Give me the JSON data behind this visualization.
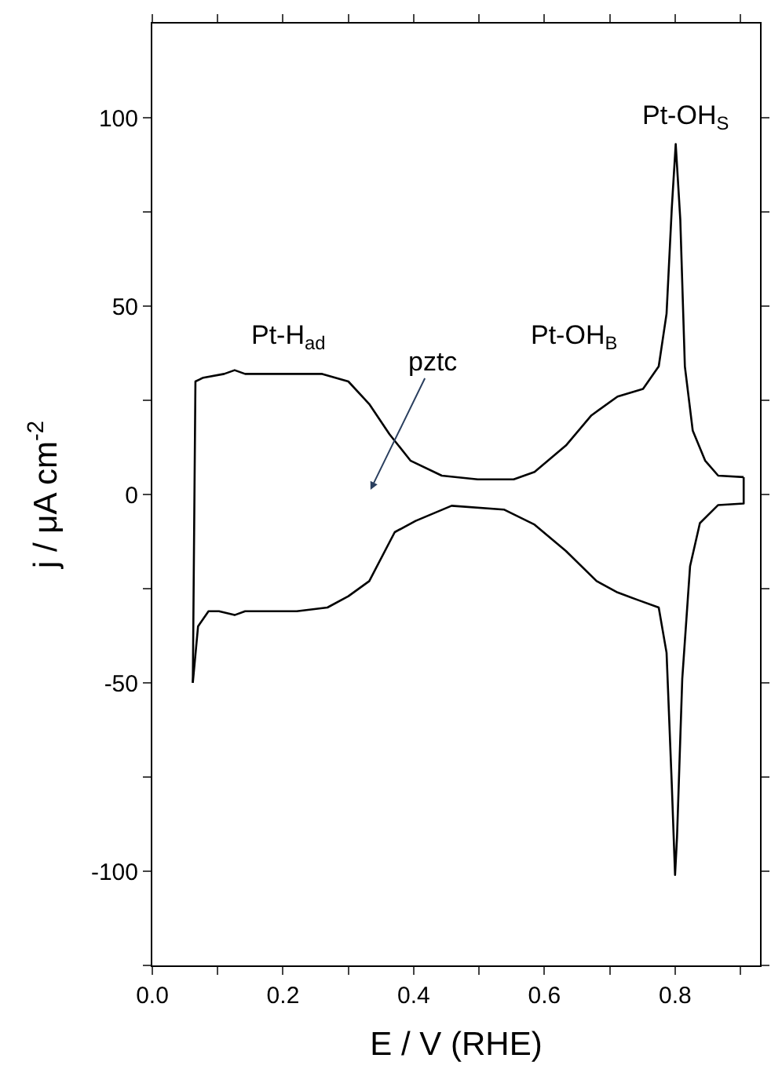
{
  "chart_data": {
    "type": "line",
    "xlabel": "E / V (RHE)",
    "ylabel": "j / μA cm$^{-2}$",
    "xlim": [
      0,
      0.93
    ],
    "ylim": [
      -125,
      125
    ],
    "xticks": [
      {
        "value": 0,
        "label": "0.0"
      },
      {
        "value": 0.1,
        "label": null
      },
      {
        "value": 0.2,
        "label": "0.2"
      },
      {
        "value": 0.3,
        "label": null
      },
      {
        "value": 0.4,
        "label": "0.4"
      },
      {
        "value": 0.5,
        "label": null
      },
      {
        "value": 0.6,
        "label": "0.6"
      },
      {
        "value": 0.7,
        "label": null
      },
      {
        "value": 0.8,
        "label": "0.8"
      },
      {
        "value": 0.9,
        "label": null
      }
    ],
    "yticks": [
      {
        "value": -125,
        "label": null
      },
      -100,
      {
        "value": -75,
        "label": null
      },
      -50,
      {
        "value": -25,
        "label": null
      },
      0,
      {
        "value": 25,
        "label": null
      },
      50,
      {
        "value": 75,
        "label": null
      },
      100
    ],
    "series": [
      {
        "color": "#000000",
        "x": [
          0.062,
          0.066,
          0.078,
          0.11,
          0.126,
          0.142,
          0.189,
          0.26,
          0.3,
          0.332,
          0.363,
          0.395,
          0.443,
          0.498,
          0.553,
          0.585,
          0.633,
          0.672,
          0.712,
          0.751,
          0.775,
          0.787,
          0.795,
          0.801,
          0.808,
          0.815,
          0.827,
          0.846,
          0.866,
          0.905
        ],
        "values": [
          -50,
          30,
          31,
          32,
          33,
          32,
          32,
          32,
          30,
          24,
          16,
          9,
          5,
          4,
          4,
          6,
          13,
          21,
          26,
          28,
          34,
          48,
          76,
          93,
          73,
          34,
          17,
          9,
          5,
          4.6
        ]
      },
      {
        "color": "#000000",
        "x": [
          0.905,
          0.905,
          0.866,
          0.838,
          0.823,
          0.811,
          0.803,
          0.8,
          0.795,
          0.787,
          0.775,
          0.743,
          0.712,
          0.68,
          0.633,
          0.585,
          0.538,
          0.458,
          0.403,
          0.371,
          0.332,
          0.3,
          0.268,
          0.221,
          0.142,
          0.126,
          0.102,
          0.086,
          0.07,
          0.062
        ],
        "values": [
          4.6,
          -2.4,
          -2.8,
          -7.6,
          -19,
          -49,
          -91,
          -101,
          -77,
          -42,
          -30,
          -28,
          -26,
          -23,
          -15,
          -8,
          -4,
          -3,
          -7,
          -10,
          -23,
          -27,
          -30,
          -31,
          -31,
          -32,
          -31,
          -31,
          -35,
          -50
        ]
      }
    ],
    "annotations": [
      "Pt-H$_{ad}$",
      "pztc",
      "Pt-OH$_{B}$",
      "Pt-OH$_{S}$"
    ],
    "marker": "none",
    "line_style": "solid"
  }
}
